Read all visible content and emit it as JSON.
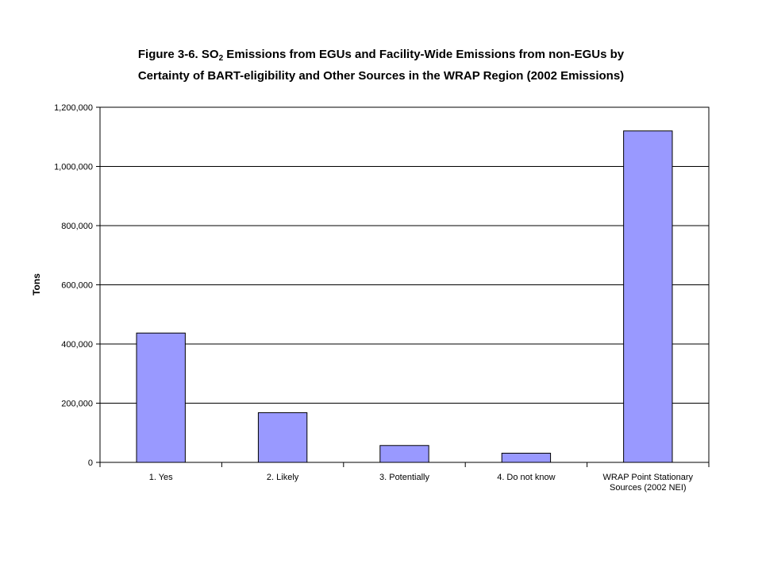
{
  "chart_data": {
    "type": "bar",
    "title_part1": "Figure 3-6.  SO",
    "title_sub": "2",
    "title_part2": " Emissions from EGUs and Facility-Wide Emissions from non-EGUs by",
    "title_line2": "Certainty of BART-eligibility and Other Sources in the WRAP Region (2002 Emissions)",
    "xlabel": "",
    "ylabel": "Tons",
    "categories": [
      [
        "1. Yes"
      ],
      [
        "2. Likely"
      ],
      [
        "3. Potentially"
      ],
      [
        "4. Do not know"
      ],
      [
        "WRAP Point Stationary",
        "Sources (2002 NEI)"
      ]
    ],
    "values": [
      437000,
      168000,
      57000,
      31000,
      1120000
    ],
    "ylim": [
      0,
      1200000
    ],
    "yticks": [
      "0",
      "200,000",
      "400,000",
      "600,000",
      "800,000",
      "1,000,000",
      "1,200,000"
    ],
    "grid": true,
    "bar_color": "#9999ff",
    "bar_edge_color": "#000000"
  }
}
